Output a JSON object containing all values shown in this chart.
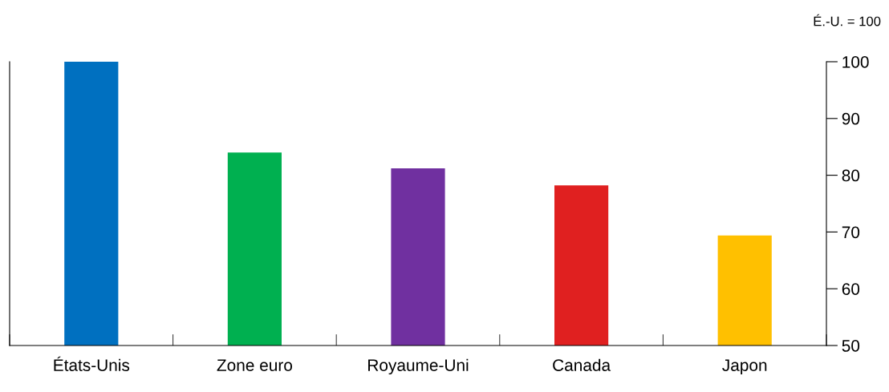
{
  "chart_data": {
    "type": "bar",
    "categories": [
      "États-Unis",
      "Zone euro",
      "Royaume-Uni",
      "Canada",
      "Japon"
    ],
    "series": [
      {
        "color": "#0070c0",
        "values": [
          100,
          null,
          null,
          null,
          null
        ]
      },
      {
        "color": "#00b050",
        "values": [
          null,
          84.0,
          null,
          null,
          null
        ]
      },
      {
        "color": "#7030a0",
        "values": [
          null,
          null,
          81.2,
          null,
          null
        ]
      },
      {
        "color": "#e02020",
        "values": [
          null,
          null,
          null,
          78.2,
          null
        ]
      },
      {
        "color": "#ffc000",
        "values": [
          null,
          null,
          null,
          null,
          69.4
        ]
      }
    ],
    "ylim": [
      50,
      100
    ],
    "yticks": [
      50,
      60,
      70,
      80,
      90,
      100
    ],
    "annotations": [
      "É.-U. = 100"
    ],
    "grid": false,
    "legend": false
  }
}
